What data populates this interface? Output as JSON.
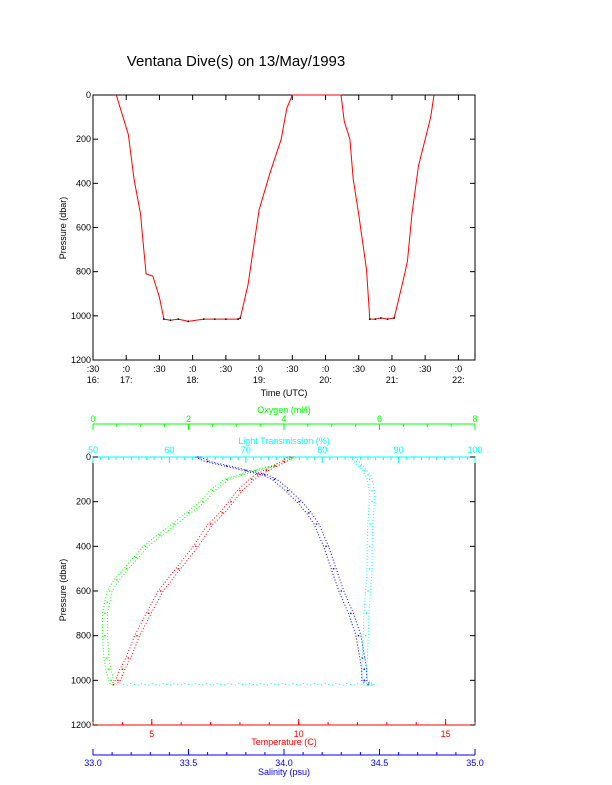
{
  "title": "Ventana Dive(s) on 13/May/1993",
  "colors": {
    "background": "#ffffff",
    "axis": "#000000",
    "temperature": "#ff0000",
    "salinity": "#0000ff",
    "oxygen": "#00ff00",
    "transmission": "#00ffff",
    "track": "#ff0000"
  },
  "chart_data": [
    {
      "type": "line",
      "xlabel": "Time (UTC)",
      "ylabel": "Pressure (dbar)",
      "xlim": [
        "16:30",
        "22:15"
      ],
      "ylim": [
        1200,
        0
      ],
      "y_ticks": [
        "0",
        "200",
        "400",
        "600",
        "800",
        "1000",
        "1200"
      ],
      "x_ticks": [
        {
          "time": "16:30",
          "line1": ":30",
          "line2": "16:"
        },
        {
          "time": "17:00",
          "line1": ":0",
          "line2": "17:"
        },
        {
          "time": "17:30",
          "line1": ":30",
          "line2": ""
        },
        {
          "time": "18:00",
          "line1": ":0",
          "line2": "18:"
        },
        {
          "time": "18:30",
          "line1": ":30",
          "line2": ""
        },
        {
          "time": "19:00",
          "line1": ":0",
          "line2": "19:"
        },
        {
          "time": "19:30",
          "line1": ":30",
          "line2": ""
        },
        {
          "time": "20:00",
          "line1": ":0",
          "line2": "20:"
        },
        {
          "time": "20:30",
          "line1": ":30",
          "line2": ""
        },
        {
          "time": "21:00",
          "line1": ":0",
          "line2": "21:"
        },
        {
          "time": "21:30",
          "line1": ":30",
          "line2": ""
        },
        {
          "time": "22:00",
          "line1": ":0",
          "line2": "22:"
        }
      ],
      "series": [
        {
          "x": [
            "16:51",
            "17:02",
            "17:07",
            "17:13",
            "17:14",
            "17:18",
            "17:24",
            "17:30",
            "17:34",
            "17:40",
            "17:47",
            "17:56",
            "18:10",
            "18:20",
            "18:30",
            "18:41",
            "18:43",
            "18:50",
            "19:00",
            "19:10",
            "19:20",
            "19:25",
            "19:30",
            "19:40",
            "19:50",
            "20:00",
            "20:08",
            "20:14",
            "20:17",
            "20:22",
            "20:25",
            "20:30",
            "20:37",
            "20:40",
            "20:45",
            "20:50",
            "20:56",
            "21:02",
            "21:12",
            "21:14",
            "21:18",
            "21:24",
            "21:30",
            "21:35",
            "21:38"
          ],
          "y": [
            0,
            180,
            380,
            540,
            600,
            810,
            820,
            915,
            1015,
            1020,
            1015,
            1025,
            1015,
            1015,
            1015,
            1015,
            1010,
            860,
            520,
            350,
            200,
            60,
            0,
            0,
            0,
            0,
            0,
            0,
            120,
            200,
            380,
            540,
            790,
            1015,
            1015,
            1010,
            1015,
            1010,
            800,
            750,
            540,
            320,
            200,
            100,
            0
          ]
        }
      ]
    },
    {
      "type": "scatter",
      "ylabel": "Pressure (dbar)",
      "ylim": [
        1200,
        0
      ],
      "y_ticks": [
        "0",
        "200",
        "400",
        "600",
        "800",
        "1000",
        "1200"
      ],
      "axes": {
        "oxygen": {
          "label": "Oxygen (ml/l)",
          "range": [
            0,
            8
          ],
          "ticks": [
            "0",
            "2",
            "4",
            "6",
            "8"
          ]
        },
        "transmission": {
          "label": "Light Transmission (%)",
          "range": [
            50,
            100
          ],
          "ticks": [
            "50",
            "60",
            "70",
            "80",
            "90",
            "100"
          ]
        },
        "temperature": {
          "label": "Temperature (C)",
          "range": [
            3,
            16
          ],
          "ticks": [
            "5",
            "10",
            "15"
          ]
        },
        "salinity": {
          "label": "Salinity (psu)",
          "range": [
            33.0,
            35.0
          ],
          "ticks": [
            "33.0",
            "33.5",
            "34.0",
            "34.5",
            "35.0"
          ]
        }
      },
      "series": [
        {
          "key": "oxygen",
          "pressure": [
            0,
            20,
            40,
            60,
            80,
            100,
            150,
            200,
            250,
            300,
            350,
            400,
            450,
            500,
            550,
            600,
            650,
            700,
            800,
            900,
            950,
            1000,
            1020
          ],
          "values": [
            4.2,
            4.0,
            3.8,
            3.4,
            3.1,
            2.8,
            2.5,
            2.3,
            2.0,
            1.7,
            1.4,
            1.1,
            0.9,
            0.7,
            0.5,
            0.35,
            0.3,
            0.25,
            0.25,
            0.28,
            0.32,
            0.38,
            0.42
          ]
        },
        {
          "key": "transmission",
          "pressure": [
            0,
            20,
            40,
            60,
            80,
            100,
            150,
            200,
            300,
            400,
            500,
            600,
            700,
            800,
            900,
            950,
            1000,
            1020
          ],
          "values": [
            84,
            84.5,
            85,
            85.5,
            86,
            86.2,
            86.5,
            86.5,
            86.3,
            86.2,
            86.2,
            86.0,
            85.8,
            85.7,
            85.6,
            85.5,
            85.6,
            86.5
          ]
        },
        {
          "key": "temperature",
          "pressure": [
            0,
            20,
            40,
            60,
            80,
            100,
            150,
            200,
            250,
            300,
            400,
            500,
            600,
            700,
            800,
            900,
            950,
            1000,
            1020
          ],
          "values": [
            9.7,
            9.5,
            9.2,
            8.9,
            8.6,
            8.4,
            8.0,
            7.7,
            7.4,
            7.0,
            6.5,
            5.9,
            5.3,
            4.9,
            4.5,
            4.2,
            4.0,
            3.85,
            3.7
          ]
        },
        {
          "key": "salinity",
          "pressure": [
            0,
            20,
            40,
            60,
            80,
            100,
            150,
            200,
            250,
            300,
            400,
            500,
            600,
            700,
            800,
            900,
            950,
            1000,
            1020
          ],
          "values": [
            33.55,
            33.6,
            33.7,
            33.8,
            33.9,
            33.95,
            34.02,
            34.08,
            34.13,
            34.17,
            34.22,
            34.26,
            34.3,
            34.35,
            34.39,
            34.41,
            34.42,
            34.42,
            34.44
          ]
        }
      ]
    }
  ]
}
